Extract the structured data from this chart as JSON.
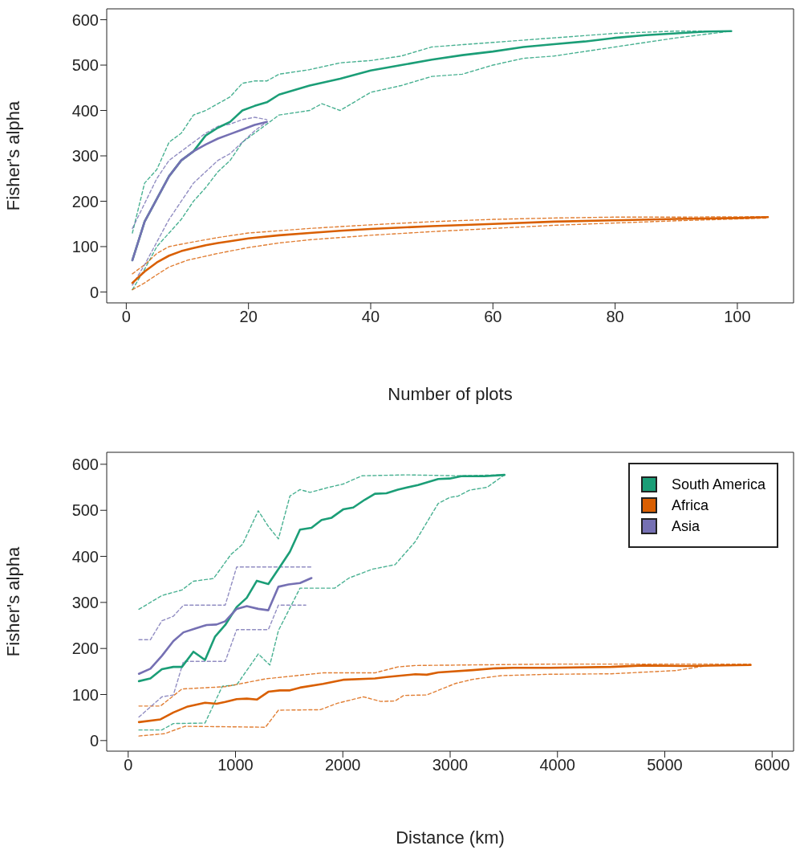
{
  "chart_data": [
    {
      "type": "line",
      "xlabel": "Number of plots",
      "ylabel": "Fisher's alpha",
      "xlim": [
        -3.2,
        109.2
      ],
      "ylim": [
        -24,
        624
      ],
      "xticks": [
        0,
        20,
        40,
        60,
        80,
        100
      ],
      "yticks": [
        0,
        100,
        200,
        300,
        400,
        500,
        600
      ],
      "legend": false,
      "marker": "none",
      "series": [
        {
          "color": "#1b9e77",
          "line_style": "dashed",
          "x": [
            1,
            3,
            5,
            7,
            9,
            11,
            13,
            15,
            17,
            19,
            21,
            23,
            25,
            30,
            35,
            40,
            45,
            50,
            55,
            60,
            65,
            70,
            80,
            90,
            99
          ],
          "values": [
            130,
            240,
            270,
            330,
            350,
            390,
            400,
            415,
            430,
            460,
            465,
            465,
            480,
            490,
            505,
            510,
            520,
            540,
            545,
            550,
            555,
            560,
            570,
            575,
            575
          ]
        },
        {
          "color": "#1b9e77",
          "line_style": "dashed",
          "x": [
            1,
            3,
            5,
            7,
            9,
            11,
            13,
            15,
            17,
            19,
            21,
            23,
            25,
            30,
            32,
            35,
            40,
            45,
            50,
            55,
            60,
            65,
            70,
            80,
            90,
            99
          ],
          "values": [
            5,
            50,
            100,
            130,
            160,
            200,
            230,
            265,
            290,
            330,
            350,
            370,
            390,
            400,
            415,
            400,
            440,
            455,
            475,
            480,
            500,
            515,
            520,
            540,
            560,
            575
          ]
        },
        {
          "color": "#d95f02",
          "line_style": "dashed",
          "x": [
            1,
            3,
            5,
            7,
            10,
            15,
            20,
            25,
            30,
            40,
            50,
            60,
            70,
            80,
            90,
            105
          ],
          "values": [
            40,
            60,
            85,
            100,
            108,
            120,
            130,
            135,
            140,
            148,
            155,
            160,
            163,
            165,
            165,
            166
          ]
        },
        {
          "color": "#d95f02",
          "line_style": "dashed",
          "x": [
            1,
            3,
            5,
            7,
            10,
            15,
            20,
            25,
            30,
            40,
            50,
            60,
            70,
            80,
            90,
            105
          ],
          "values": [
            5,
            20,
            38,
            55,
            70,
            85,
            98,
            108,
            115,
            125,
            133,
            140,
            147,
            152,
            157,
            163
          ]
        },
        {
          "color": "#7570b3",
          "line_style": "dashed",
          "x": [
            1,
            3,
            5,
            7,
            9,
            11,
            13,
            15,
            17,
            19,
            21,
            23
          ],
          "values": [
            140,
            195,
            250,
            290,
            310,
            330,
            350,
            365,
            370,
            380,
            385,
            380
          ]
        },
        {
          "color": "#7570b3",
          "line_style": "dashed",
          "x": [
            1,
            3,
            5,
            7,
            9,
            11,
            13,
            15,
            17,
            19,
            21,
            23
          ],
          "values": [
            15,
            60,
            110,
            160,
            200,
            240,
            265,
            290,
            305,
            330,
            355,
            375
          ]
        },
        {
          "color": "#1b9e77",
          "line_style": "solid",
          "x": [
            1,
            3,
            5,
            7,
            9,
            11,
            13,
            15,
            17,
            19,
            21,
            23,
            25,
            30,
            35,
            40,
            45,
            50,
            55,
            60,
            65,
            70,
            75,
            80,
            85,
            90,
            95,
            99
          ],
          "values": [
            70,
            155,
            205,
            255,
            290,
            310,
            345,
            362,
            375,
            400,
            410,
            418,
            435,
            455,
            470,
            488,
            500,
            512,
            522,
            530,
            540,
            546,
            552,
            560,
            566,
            570,
            574,
            575
          ]
        },
        {
          "color": "#d95f02",
          "line_style": "solid",
          "x": [
            1,
            3,
            5,
            7,
            9,
            11,
            13,
            15,
            17,
            20,
            25,
            30,
            35,
            40,
            50,
            60,
            70,
            80,
            90,
            100,
            105
          ],
          "values": [
            20,
            45,
            65,
            80,
            90,
            97,
            103,
            108,
            112,
            118,
            125,
            130,
            135,
            139,
            145,
            150,
            155,
            158,
            161,
            163,
            165
          ]
        },
        {
          "color": "#7570b3",
          "line_style": "solid",
          "x": [
            1,
            3,
            5,
            7,
            9,
            11,
            13,
            15,
            17,
            19,
            21,
            23
          ],
          "values": [
            70,
            155,
            205,
            255,
            290,
            310,
            325,
            338,
            348,
            358,
            368,
            375
          ]
        }
      ]
    },
    {
      "type": "line",
      "xlabel": "Distance (km)",
      "ylabel": "Fisher's alpha",
      "xlim": [
        -200,
        6200
      ],
      "ylim": [
        -23,
        626
      ],
      "xticks": [
        0,
        1000,
        2000,
        3000,
        4000,
        5000,
        6000
      ],
      "yticks": [
        0,
        100,
        200,
        300,
        400,
        500,
        600
      ],
      "legend": "top right",
      "marker": "none",
      "series": [
        {
          "color": "#1b9e77",
          "line_style": "dashed",
          "x": [
            100,
            314,
            501,
            608,
            796,
            957,
            1065,
            1212,
            1306,
            1400,
            1507,
            1601,
            1695,
            1870,
            2003,
            2178,
            2594,
            3076,
            3506
          ],
          "values": [
            285,
            315,
            327,
            346,
            352,
            404,
            426,
            499,
            465,
            438,
            531,
            545,
            539,
            550,
            557,
            575,
            577,
            575,
            577
          ]
        },
        {
          "color": "#1b9e77",
          "line_style": "dashed",
          "x": [
            100,
            314,
            421,
            716,
            877,
            1011,
            1212,
            1320,
            1400,
            1601,
            1924,
            2058,
            2272,
            2487,
            2675,
            2889,
            2996,
            3076,
            3183,
            3345,
            3506
          ],
          "values": [
            23,
            23,
            37,
            38,
            118,
            121,
            188,
            164,
            239,
            331,
            331,
            353,
            372,
            382,
            432,
            515,
            528,
            531,
            544,
            550,
            577
          ]
        },
        {
          "color": "#d95f02",
          "line_style": "dashed",
          "x": [
            100,
            301,
            501,
            904,
            1279,
            1816,
            2299,
            2513,
            2675,
            3931,
            5800
          ],
          "values": [
            75,
            75,
            112,
            117,
            134,
            147,
            147,
            160,
            163,
            166,
            166
          ]
        },
        {
          "color": "#d95f02",
          "line_style": "dashed",
          "x": [
            100,
            341,
            528,
            1279,
            1400,
            1790,
            1950,
            2192,
            2352,
            2487,
            2567,
            2782,
            3050,
            3211,
            3479,
            3931,
            4500,
            5100,
            5400,
            5800
          ],
          "values": [
            10,
            15,
            31,
            29,
            66,
            67,
            81,
            95,
            85,
            86,
            98,
            99,
            124,
            133,
            141,
            144,
            145,
            152,
            163,
            164
          ]
        },
        {
          "color": "#7570b3",
          "line_style": "dashed",
          "x": [
            100,
            207,
            314,
            421,
            515,
            904,
            1011,
            1708
          ],
          "values": [
            219,
            219,
            260,
            270,
            294,
            294,
            377,
            377
          ]
        },
        {
          "color": "#7570b3",
          "line_style": "dashed",
          "x": [
            100,
            207,
            314,
            421,
            515,
            904,
            1011,
            1306,
            1400,
            1655
          ],
          "values": [
            51,
            73,
            95,
            99,
            172,
            172,
            241,
            241,
            294,
            294
          ]
        },
        {
          "name": "South America",
          "color": "#1b9e77",
          "line_style": "solid",
          "x": [
            100,
            207,
            314,
            421,
            501,
            608,
            716,
            810,
            904,
            1011,
            1105,
            1199,
            1306,
            1413,
            1507,
            1601,
            1708,
            1802,
            1896,
            2003,
            2097,
            2205,
            2299,
            2406,
            2513,
            2701,
            2889,
            2996,
            3103,
            3318,
            3506
          ],
          "values": [
            129,
            135,
            155,
            160,
            160,
            193,
            175,
            226,
            251,
            290,
            310,
            347,
            340,
            377,
            410,
            458,
            462,
            479,
            484,
            502,
            506,
            523,
            536,
            537,
            545,
            555,
            568,
            569,
            574,
            574,
            577
          ]
        },
        {
          "name": "Africa",
          "color": "#d95f02",
          "line_style": "solid",
          "x": [
            100,
            301,
            421,
            555,
            716,
            823,
            904,
            1011,
            1105,
            1199,
            1306,
            1413,
            1507,
            1601,
            1816,
            2003,
            2299,
            2406,
            2675,
            2782,
            2889,
            3211,
            3426,
            3587,
            3931,
            4500,
            4800,
            5200,
            5800
          ],
          "values": [
            40,
            46,
            61,
            74,
            82,
            80,
            84,
            90,
            91,
            89,
            106,
            109,
            109,
            115,
            123,
            132,
            135,
            138,
            144,
            143,
            148,
            153,
            157,
            158,
            158,
            160,
            163,
            162,
            164
          ]
        },
        {
          "name": "Asia",
          "color": "#7570b3",
          "line_style": "solid",
          "x": [
            100,
            207,
            314,
            421,
            515,
            622,
            730,
            823,
            904,
            1011,
            1105,
            1212,
            1306,
            1400,
            1494,
            1601,
            1708
          ],
          "values": [
            145,
            156,
            184,
            216,
            235,
            243,
            251,
            252,
            259,
            286,
            292,
            286,
            283,
            334,
            339,
            342,
            353
          ]
        }
      ]
    }
  ]
}
